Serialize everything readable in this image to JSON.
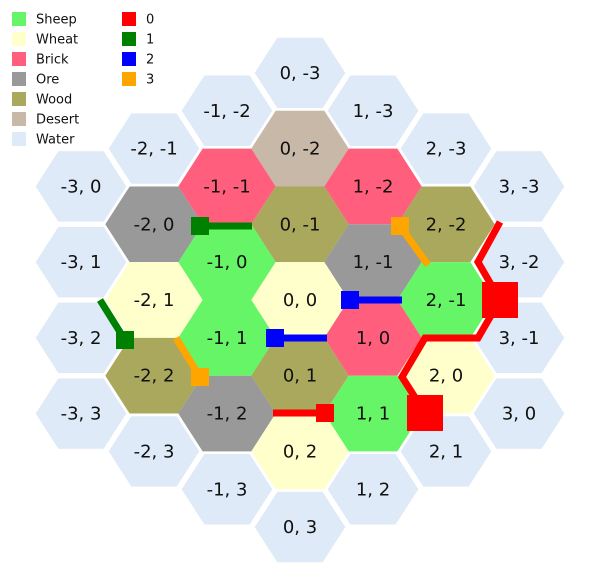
{
  "legend": {
    "resources": [
      {
        "name": "Sheep",
        "color": "#66f566"
      },
      {
        "name": "Wheat",
        "color": "#ffffcc"
      },
      {
        "name": "Brick",
        "color": "#ff5f7c"
      },
      {
        "name": "Ore",
        "color": "#999999"
      },
      {
        "name": "Wood",
        "color": "#a9a85c"
      },
      {
        "name": "Desert",
        "color": "#c8b8a8"
      },
      {
        "name": "Water",
        "color": "#deeaf7"
      }
    ],
    "players": [
      {
        "label": "0",
        "color": "#ff0000"
      },
      {
        "label": "1",
        "color": "#008000"
      },
      {
        "label": "2",
        "color": "#0000ff"
      },
      {
        "label": "3",
        "color": "#ffa500"
      }
    ]
  },
  "tiles": [
    {
      "label": "0, -3",
      "resource": "Water"
    },
    {
      "label": "1, -3",
      "resource": "Water"
    },
    {
      "label": "2, -3",
      "resource": "Water"
    },
    {
      "label": "3, -3",
      "resource": "Water"
    },
    {
      "label": "3, -2",
      "resource": "Water"
    },
    {
      "label": "3, -1",
      "resource": "Water"
    },
    {
      "label": "3, 0",
      "resource": "Water"
    },
    {
      "label": "2, 1",
      "resource": "Water"
    },
    {
      "label": "1, 2",
      "resource": "Water"
    },
    {
      "label": "0, 3",
      "resource": "Water"
    },
    {
      "label": "-1, 3",
      "resource": "Water"
    },
    {
      "label": "-2, 3",
      "resource": "Water"
    },
    {
      "label": "-3, 3",
      "resource": "Water"
    },
    {
      "label": "-3, 2",
      "resource": "Water"
    },
    {
      "label": "-3, 1",
      "resource": "Water"
    },
    {
      "label": "-3, 0",
      "resource": "Water"
    },
    {
      "label": "-2, -1",
      "resource": "Water"
    },
    {
      "label": "-1, -2",
      "resource": "Water"
    },
    {
      "label": "0, -2",
      "resource": "Desert"
    },
    {
      "label": "-1, -1",
      "resource": "Brick"
    },
    {
      "label": "1, -2",
      "resource": "Brick"
    },
    {
      "label": "-2, 0",
      "resource": "Ore"
    },
    {
      "label": "0, -1",
      "resource": "Wood"
    },
    {
      "label": "2, -2",
      "resource": "Wood"
    },
    {
      "label": "-1, 0",
      "resource": "Sheep"
    },
    {
      "label": "1, -1",
      "resource": "Ore"
    },
    {
      "label": "-2, 1",
      "resource": "Wheat"
    },
    {
      "label": "0, 0",
      "resource": "Wheat"
    },
    {
      "label": "2, -1",
      "resource": "Sheep"
    },
    {
      "label": "-1, 1",
      "resource": "Sheep"
    },
    {
      "label": "1, 0",
      "resource": "Brick"
    },
    {
      "label": "-2, 2",
      "resource": "Wood"
    },
    {
      "label": "0, 1",
      "resource": "Wood"
    },
    {
      "label": "2, 0",
      "resource": "Wheat"
    },
    {
      "label": "-1, 2",
      "resource": "Ore"
    },
    {
      "label": "1, 1",
      "resource": "Sheep"
    },
    {
      "label": "0, 2",
      "resource": "Wheat"
    }
  ]
}
